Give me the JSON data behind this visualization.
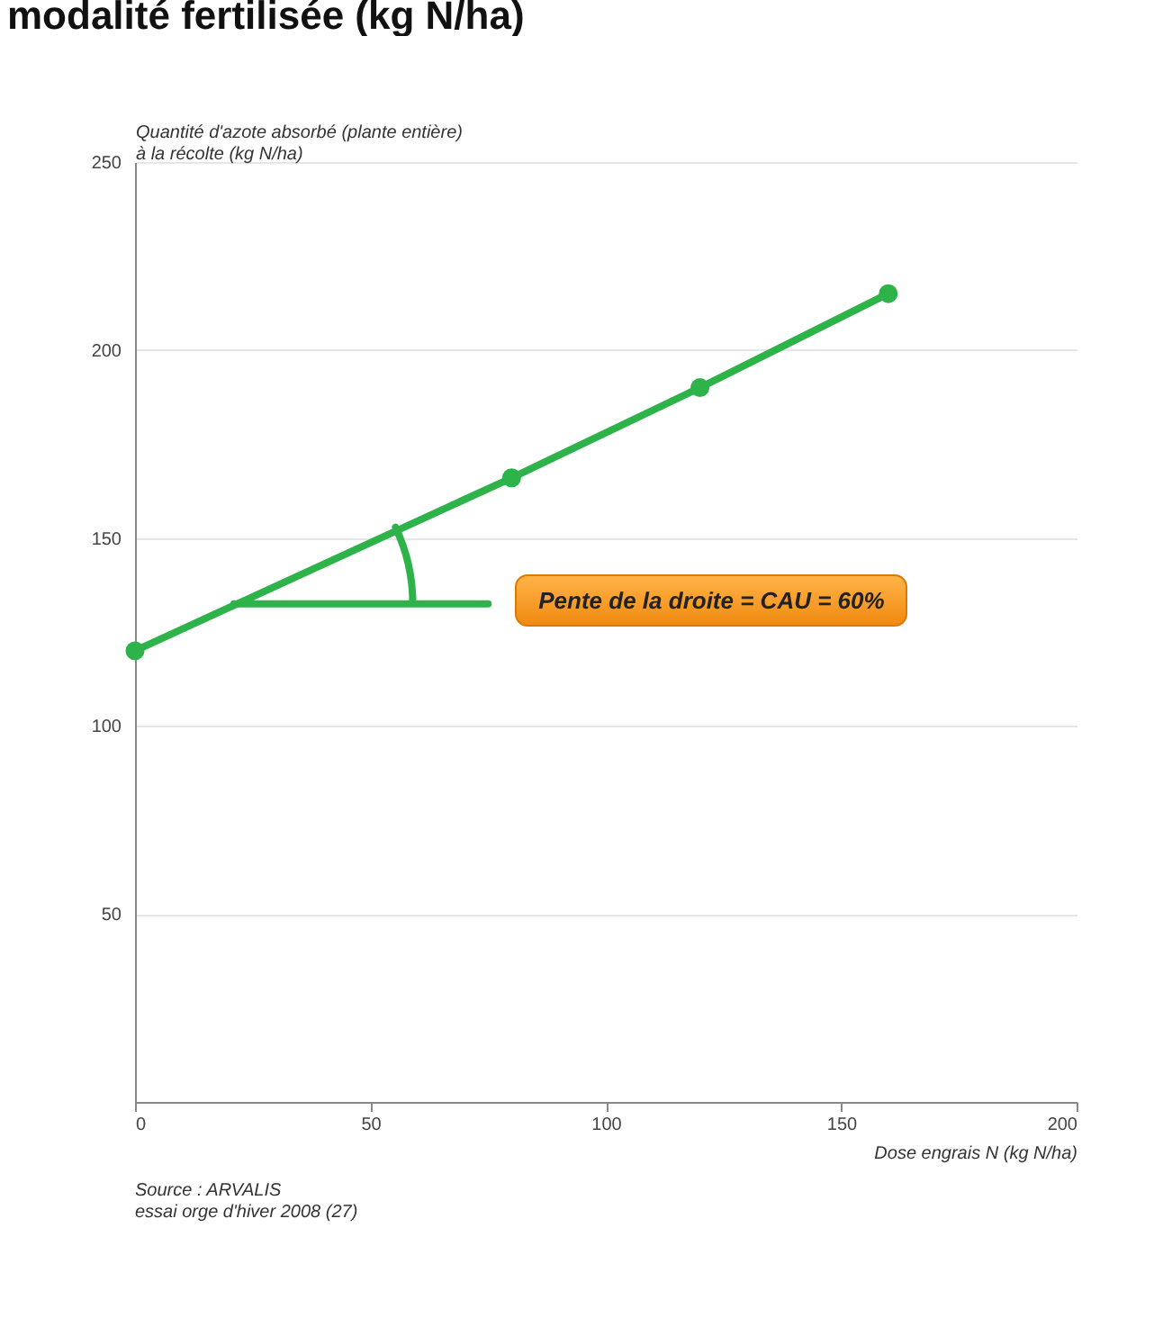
{
  "chart_data": {
    "type": "line",
    "title": "modalité fertilisée (kg N/ha)",
    "ylabel": "Quantité d'azote absorbé (plante entière) à la récolte (kg N/ha)",
    "xlabel": "Dose engrais N (kg N/ha)",
    "x": [
      0,
      80,
      120,
      160
    ],
    "series": [
      {
        "color": "#2db34a",
        "values": [
          120,
          166,
          190,
          215
        ]
      }
    ],
    "xlim": [
      0,
      200
    ],
    "xticks": [
      0,
      50,
      100,
      150,
      200
    ],
    "ylim": [
      0,
      250
    ],
    "yticks": [
      50,
      100,
      150,
      200,
      250
    ],
    "grid": "y",
    "marker": "circle",
    "line_style": "solid",
    "legend": false,
    "annotations": [
      "Pente de la droite = CAU = 60%",
      "Source : ARVALIS",
      "essai orge d'hiver 2008 (27)"
    ]
  }
}
